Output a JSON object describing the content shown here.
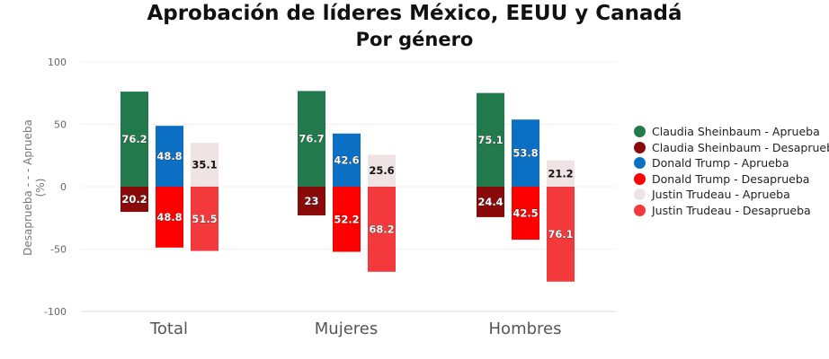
{
  "chart_data": {
    "type": "bar",
    "title": "Aprobación de líderes México, EEUU y Canadá",
    "subtitle": "Por género",
    "xlabel": "",
    "ylabel": "Desaprueba - - - Aprueba",
    "ylabel_unit": "(%)",
    "ylim": [
      -100,
      100
    ],
    "yticks": [
      100,
      50,
      0,
      -50,
      -100
    ],
    "grid": true,
    "legend_position": "right",
    "categories": [
      "Total",
      "Mujeres",
      "Hombres"
    ],
    "series": [
      {
        "name": "Claudia Sheinbaum - Aprueba",
        "color": "#227a4c",
        "slot": 0,
        "values": [
          76.2,
          76.7,
          75.1
        ],
        "labels": [
          "76.2",
          "76.7",
          "75.1"
        ]
      },
      {
        "name": "Claudia Sheinbaum - Desaprueba",
        "color": "#8a0a0a",
        "slot": 0,
        "values": [
          -20.2,
          -23,
          -24.4
        ],
        "labels": [
          "20.2",
          "23",
          "24.4"
        ]
      },
      {
        "name": "Donald Trump - Aprueba",
        "color": "#0b6fc4",
        "slot": 1,
        "values": [
          48.8,
          42.6,
          53.8
        ],
        "labels": [
          "48.8",
          "42.6",
          "53.8"
        ]
      },
      {
        "name": "Donald Trump - Desaprueba",
        "color": "#fe0000",
        "slot": 1,
        "values": [
          -48.8,
          -52.2,
          -42.5
        ],
        "labels": [
          "48.8",
          "52.2",
          "42.5"
        ]
      },
      {
        "name": "Justin Trudeau - Aprueba",
        "color": "#efe3e3",
        "slot": 2,
        "values": [
          35.1,
          25.6,
          21.2
        ],
        "labels": [
          "35.1",
          "25.6",
          "21.2"
        ]
      },
      {
        "name": "Justin Trudeau - Desaprueba",
        "color": "#f4393d",
        "slot": 2,
        "values": [
          -51.5,
          -68.2,
          -76.1
        ],
        "labels": [
          "51.5",
          "68.2",
          "76.1"
        ]
      }
    ]
  }
}
